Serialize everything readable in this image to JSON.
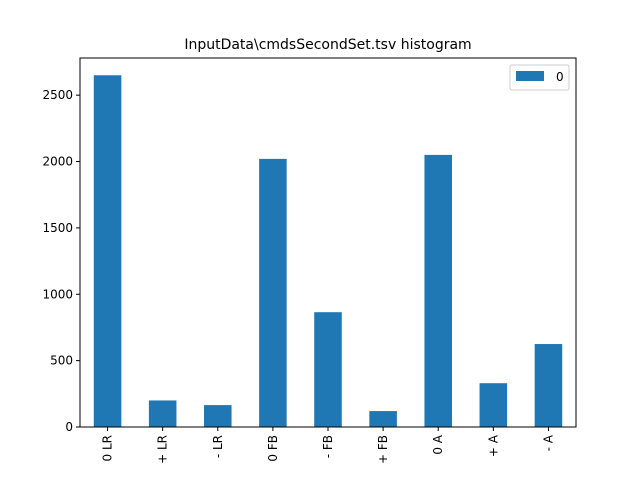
{
  "chart_data": {
    "type": "bar",
    "title": "InputData\\cmdsSecondSet.tsv histogram",
    "xlabel": "",
    "ylabel": "",
    "categories": [
      "0 LR",
      "+ LR",
      "- LR",
      "0 FB",
      "- FB",
      "+ FB",
      "0 A",
      "+ A",
      "- A"
    ],
    "series": [
      {
        "name": "0",
        "color": "#1f77b4",
        "values": [
          2650,
          200,
          165,
          2020,
          865,
          120,
          2050,
          330,
          625
        ]
      }
    ],
    "ylim": [
      0,
      2780
    ],
    "yticks": [
      0,
      500,
      1000,
      1500,
      2000,
      2500
    ],
    "grid": false,
    "legend": "top-right"
  }
}
